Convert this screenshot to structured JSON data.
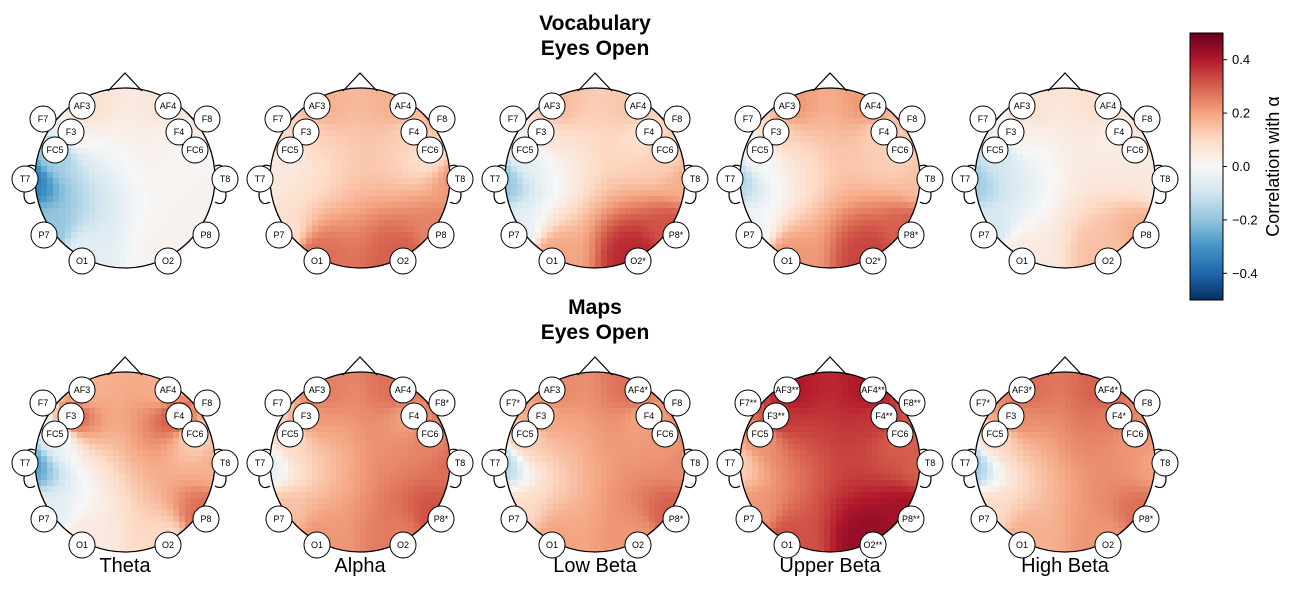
{
  "chart_data": {
    "type": "heatmap",
    "subtype": "eeg-topomap-grid",
    "rows": [
      {
        "title_line1": "Vocabulary",
        "title_line2": "Eyes Open"
      },
      {
        "title_line1": "Maps",
        "title_line2": "Eyes Open"
      }
    ],
    "bands": [
      "Theta",
      "Alpha",
      "Low Beta",
      "Upper Beta",
      "High Beta"
    ],
    "electrode_names": [
      "AF3",
      "AF4",
      "F7",
      "F8",
      "F3",
      "F4",
      "FC5",
      "FC6",
      "T7",
      "T8",
      "P7",
      "P8",
      "O1",
      "O2"
    ],
    "values": [
      [
        [
          0.08,
          0.06,
          -0.02,
          0.1,
          0.03,
          0.02,
          -0.18,
          0.0,
          -0.35,
          0.02,
          -0.2,
          0.02,
          -0.05,
          0.02
        ],
        [
          0.18,
          0.18,
          0.12,
          0.2,
          0.12,
          0.12,
          0.05,
          0.08,
          0.05,
          0.22,
          0.08,
          0.25,
          0.28,
          0.3
        ],
        [
          0.16,
          0.14,
          0.02,
          0.14,
          0.08,
          0.08,
          -0.05,
          0.12,
          -0.2,
          0.18,
          -0.05,
          0.32,
          0.2,
          0.38
        ],
        [
          0.22,
          0.22,
          0.05,
          0.16,
          0.12,
          0.12,
          0.0,
          0.12,
          -0.15,
          0.15,
          -0.02,
          0.3,
          0.22,
          0.34
        ],
        [
          0.08,
          0.08,
          -0.05,
          0.1,
          0.03,
          0.03,
          -0.1,
          0.05,
          -0.18,
          0.05,
          -0.08,
          0.18,
          0.05,
          0.15
        ]
      ],
      [
        [
          0.18,
          0.18,
          0.05,
          0.2,
          0.3,
          0.32,
          -0.05,
          0.12,
          -0.28,
          0.18,
          -0.05,
          0.28,
          0.05,
          0.1
        ],
        [
          0.26,
          0.28,
          0.12,
          0.3,
          0.22,
          0.2,
          0.1,
          0.25,
          -0.05,
          0.28,
          0.15,
          0.32,
          0.22,
          0.26
        ],
        [
          0.24,
          0.28,
          0.2,
          0.24,
          0.2,
          0.2,
          0.12,
          0.22,
          -0.15,
          0.24,
          0.1,
          0.3,
          0.2,
          0.22
        ],
        [
          0.4,
          0.4,
          0.3,
          0.32,
          0.36,
          0.36,
          0.22,
          0.3,
          0.12,
          0.3,
          0.22,
          0.42,
          0.32,
          0.44
        ],
        [
          0.28,
          0.3,
          0.22,
          0.24,
          0.24,
          0.26,
          0.1,
          0.22,
          -0.18,
          0.2,
          0.1,
          0.28,
          0.18,
          0.22
        ]
      ]
    ],
    "electrode_labels": [
      [
        [
          "AF3",
          "AF4",
          "F7",
          "F8",
          "F3",
          "F4",
          "FC5",
          "FC6",
          "T7",
          "T8",
          "P7",
          "P8",
          "O1",
          "O2"
        ],
        [
          "AF3",
          "AF4",
          "F7",
          "F8",
          "F3",
          "F4",
          "FC5",
          "FC6",
          "T7",
          "T8",
          "P7",
          "P8",
          "O1",
          "O2"
        ],
        [
          "AF3",
          "AF4",
          "F7",
          "F8",
          "F3",
          "F4",
          "FC5",
          "FC6",
          "T7",
          "T8",
          "P7",
          "P8*",
          "O1",
          "O2*"
        ],
        [
          "AF3",
          "AF4",
          "F7",
          "F8",
          "F3",
          "F4",
          "FC5",
          "FC6",
          "T7",
          "T8",
          "P7",
          "P8*",
          "O1",
          "O2*"
        ],
        [
          "AF3",
          "AF4",
          "F7",
          "F8",
          "F3",
          "F4",
          "FC5",
          "FC6",
          "T7",
          "T8",
          "P7",
          "P8",
          "O1",
          "O2"
        ]
      ],
      [
        [
          "AF3",
          "AF4",
          "F7",
          "F8",
          "F3",
          "F4",
          "FC5",
          "FC6",
          "T7",
          "T8",
          "P7",
          "P8",
          "O1",
          "O2"
        ],
        [
          "AF3",
          "AF4",
          "F7",
          "F8*",
          "F3",
          "F4",
          "FC5",
          "FC6",
          "T7",
          "T8",
          "P7",
          "P8*",
          "O1",
          "O2"
        ],
        [
          "AF3",
          "AF4*",
          "F7*",
          "F8",
          "F3",
          "F4",
          "FC5",
          "FC6",
          "T7",
          "T8",
          "P7",
          "P8*",
          "O1",
          "O2"
        ],
        [
          "AF3**",
          "AF4**",
          "F7**",
          "F8**",
          "F3**",
          "F4**",
          "FC5",
          "FC6",
          "T7",
          "T8",
          "P7",
          "P8**",
          "O1",
          "O2**"
        ],
        [
          "AF3*",
          "AF4*",
          "F7*",
          "F8",
          "F3",
          "F4*",
          "FC5",
          "FC6",
          "T7",
          "T8",
          "P7",
          "P8*",
          "O1",
          "O2"
        ]
      ]
    ],
    "colorbar": {
      "label": "Correlation with α",
      "range": [
        -0.5,
        0.5
      ],
      "ticks": [
        0.4,
        0.2,
        0.0,
        -0.2,
        -0.4
      ],
      "tick_labels": [
        "0.4",
        "0.2",
        "0.0",
        "−0.2",
        "−0.4"
      ],
      "colormap": "RdBu_r"
    }
  },
  "colors": {
    "low": "#053061",
    "mid": "#f7f7f7",
    "high": "#67001f",
    "outline": "#000000"
  }
}
